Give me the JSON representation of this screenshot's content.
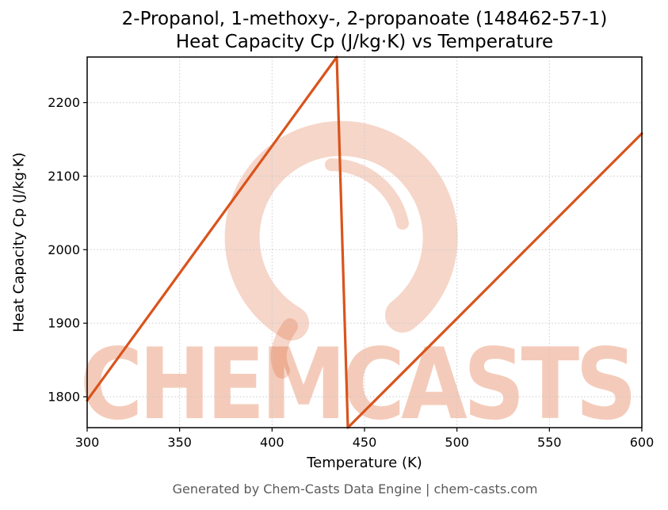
{
  "title": {
    "line1": "2-Propanol, 1-methoxy-, 2-propanoate (148462-57-1)",
    "line2": "Heat Capacity Cp (J/kg·K) vs Temperature"
  },
  "watermark": {
    "text": "CHEMCASTS",
    "color": "#f2c8b6"
  },
  "footer": "Generated by Chem-Casts Data Engine | chem-casts.com",
  "chart_data": {
    "type": "line",
    "title": "2-Propanol, 1-methoxy-, 2-propanoate (148462-57-1) Heat Capacity Cp (J/kg·K) vs Temperature",
    "xlabel": "Temperature (K)",
    "ylabel": "Heat Capacity Cp (J/kg·K)",
    "xlim": [
      300,
      600
    ],
    "ylim": [
      1758,
      2262
    ],
    "xticks": [
      300,
      350,
      400,
      450,
      500,
      550,
      600
    ],
    "yticks": [
      1800,
      1900,
      2000,
      2100,
      2200
    ],
    "grid": true,
    "legend": false,
    "line_color": "#d9541c",
    "series": [
      {
        "name": "Heat Capacity Cp",
        "points": [
          [
            300,
            1795
          ],
          [
            435,
            2262
          ],
          [
            441,
            1758
          ],
          [
            600,
            2158
          ]
        ]
      }
    ]
  }
}
